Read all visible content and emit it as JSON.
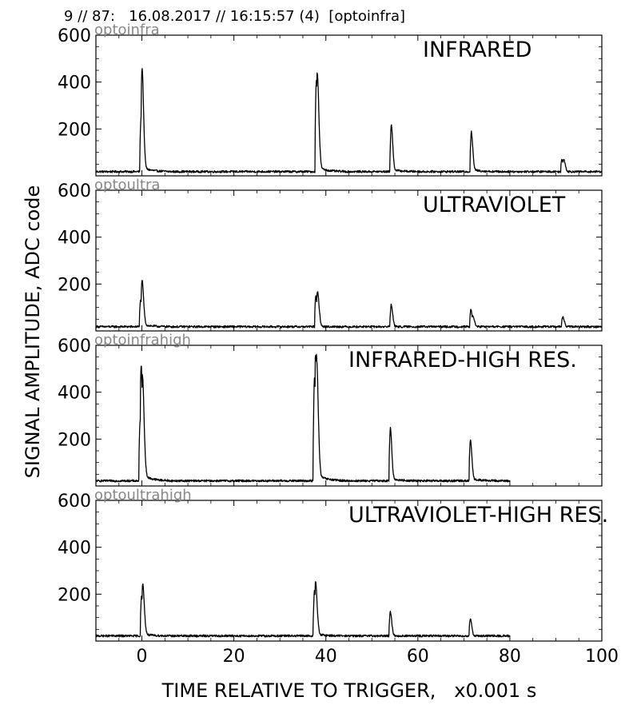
{
  "header": "9 // 87:   16.08.2017 // 16:15:57 (4)  [optoinfra]",
  "ylabel": "SIGNAL AMPLITUDE,  ADC code",
  "xlabel": "TIME RELATIVE TO TRIGGER,   x0.001 s",
  "colors": {
    "trace": "#000000",
    "channel_label": "#888888",
    "axes": "#000000"
  },
  "chart_data": [
    {
      "type": "line",
      "channel": "optoinfra",
      "title": "INFRARED",
      "xlim": [
        -10,
        100
      ],
      "ylim": [
        0,
        600
      ],
      "yticks": [
        200,
        400,
        600
      ],
      "xticks": [
        0,
        20,
        40,
        60,
        80,
        100
      ],
      "x_range": [
        -10,
        100
      ],
      "baseline": 18,
      "peaks": [
        {
          "x": 0.1,
          "y": 300
        },
        {
          "x": -0.2,
          "y": 240
        },
        {
          "x": 37.9,
          "y": 395
        },
        {
          "x": 38.3,
          "y": 205
        },
        {
          "x": 54.2,
          "y": 212
        },
        {
          "x": 71.6,
          "y": 180
        },
        {
          "x": 91.3,
          "y": 68
        },
        {
          "x": 91.8,
          "y": 55
        }
      ]
    },
    {
      "type": "line",
      "channel": "optoultra",
      "title": "ULTRAVIOLET",
      "xlim": [
        -10,
        100
      ],
      "ylim": [
        0,
        600
      ],
      "yticks": [
        200,
        400,
        600
      ],
      "xticks": [
        0,
        20,
        40,
        60,
        80,
        100
      ],
      "x_range": [
        -10,
        100
      ],
      "baseline": 18,
      "peaks": [
        {
          "x": 0.1,
          "y": 155
        },
        {
          "x": -0.3,
          "y": 130
        },
        {
          "x": 37.8,
          "y": 148
        },
        {
          "x": 38.3,
          "y": 120
        },
        {
          "x": 54.2,
          "y": 112
        },
        {
          "x": 71.5,
          "y": 88
        },
        {
          "x": 72.1,
          "y": 45
        },
        {
          "x": 91.5,
          "y": 60
        }
      ]
    },
    {
      "type": "line",
      "channel": "optoinfrahigh",
      "title": "INFRARED-HIGH RES.",
      "xlim": [
        -10,
        100
      ],
      "ylim": [
        0,
        600
      ],
      "yticks": [
        200,
        400,
        600
      ],
      "xticks": [
        0,
        20,
        40,
        60,
        80,
        100
      ],
      "x_range": [
        -10,
        80
      ],
      "baseline": 22,
      "peaks": [
        {
          "x": -0.1,
          "y": 330
        },
        {
          "x": -0.4,
          "y": 270
        },
        {
          "x": 0.3,
          "y": 230
        },
        {
          "x": 37.5,
          "y": 450
        },
        {
          "x": 37.9,
          "y": 320
        },
        {
          "x": 38.2,
          "y": 200
        },
        {
          "x": 54.0,
          "y": 240
        },
        {
          "x": 71.4,
          "y": 190
        }
      ]
    },
    {
      "type": "line",
      "channel": "optoultrahigh",
      "title": "ULTRAVIOLET-HIGH RES.",
      "xlim": [
        -10,
        100
      ],
      "ylim": [
        0,
        600
      ],
      "yticks": [
        200,
        400,
        600
      ],
      "xticks": [
        0,
        20,
        40,
        60,
        80,
        100
      ],
      "x_range": [
        -10,
        80
      ],
      "baseline": 22,
      "peaks": [
        {
          "x": -0.1,
          "y": 180
        },
        {
          "x": 0.3,
          "y": 150
        },
        {
          "x": 37.5,
          "y": 205
        },
        {
          "x": 37.9,
          "y": 140
        },
        {
          "x": 54.0,
          "y": 125
        },
        {
          "x": 71.4,
          "y": 95
        }
      ]
    }
  ]
}
